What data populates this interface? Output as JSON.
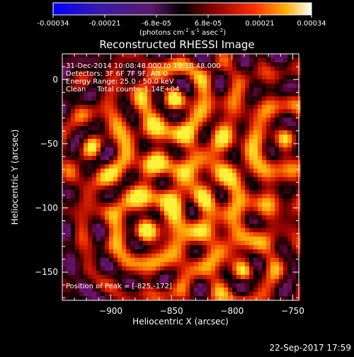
{
  "colorbar": {
    "ticks": [
      "-0.00034",
      "-0.00021",
      "-6.8e-05",
      "6.8e-05",
      "0.00021",
      "0.00034"
    ],
    "unit_main": "(photons cm",
    "unit_sup1": "-2",
    "unit_mid": " s",
    "unit_sup2": "-1",
    "unit_end": " asec",
    "unit_sup3": "-2",
    "unit_close": ")",
    "range": [
      -0.00034,
      0.00034
    ]
  },
  "title": "Reconstructed RHESSI Image",
  "annotations": [
    "31-Dec-2014 10:08:48.000 to 10:18:48.000",
    "Detectors: 3F 6F 7F 9F, Att 0",
    "Energy Range: 25.0 - 50.0 keV",
    "Clean     Total counts: 1.14E+04"
  ],
  "peak_label": "Position of Peak = [-825,-172]",
  "footer_date": "22-Sep-2017 17:59",
  "chart_data": {
    "type": "heatmap",
    "title": "Reconstructed RHESSI Image",
    "xlabel": "Heliocentric X (arcsec)",
    "ylabel": "Heliocentric Y (arcsec)",
    "xlim": [
      -940,
      -745
    ],
    "ylim": [
      -172,
      20
    ],
    "x_ticks": [
      -900,
      -850,
      -800,
      -750
    ],
    "x_tick_labels": [
      "−900",
      "−850",
      "−800",
      "−750"
    ],
    "y_ticks": [
      0,
      -50,
      -100,
      -150
    ],
    "y_tick_labels": [
      "0",
      "−50",
      "−100",
      "−150"
    ],
    "peak_position": [
      -825,
      -172
    ],
    "sources": [
      {
        "x": -848,
        "y": -15,
        "amp": 1.0
      },
      {
        "x": -872,
        "y": -118,
        "amp": 0.95
      },
      {
        "x": -757,
        "y": -45,
        "amp": 0.9
      },
      {
        "x": -790,
        "y": -150,
        "amp": 0.85
      },
      {
        "x": -915,
        "y": -52,
        "amp": 0.6
      },
      {
        "x": -822,
        "y": -95,
        "amp": 0.55
      }
    ]
  }
}
